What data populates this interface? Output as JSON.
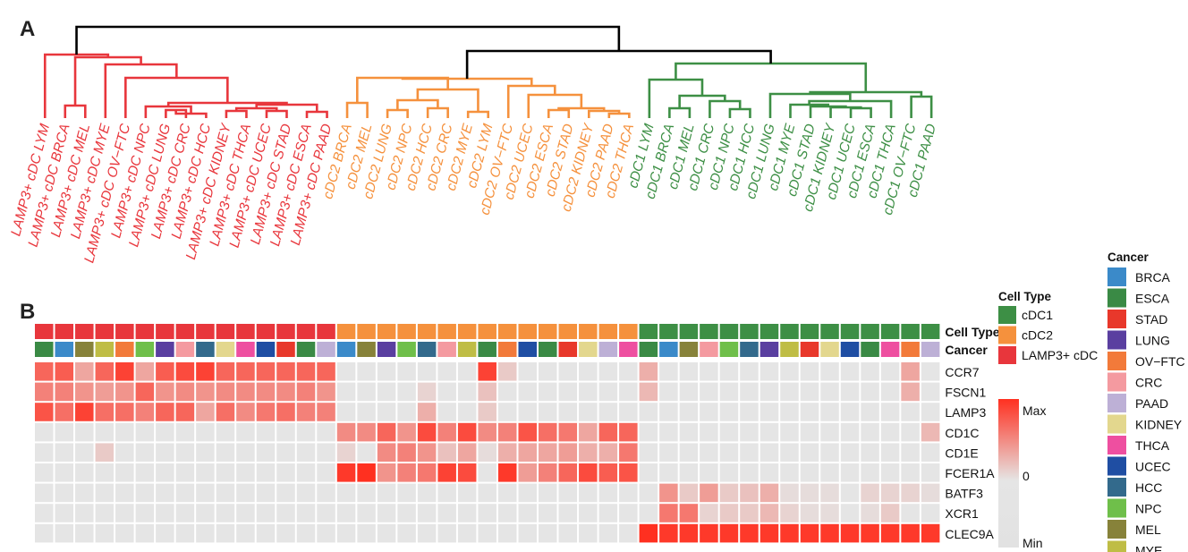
{
  "panels": {
    "a": "A",
    "b": "B"
  },
  "colors": {
    "cell_types": {
      "LAMP3+ cDC": "#e8363c",
      "cDC2": "#f5913d",
      "cDC1": "#3d8f45"
    },
    "cancers": {
      "BRCA": "#3b8ac9",
      "ESCA": "#3a8a45",
      "STAD": "#e8382b",
      "LUNG": "#5a3fa0",
      "OV-FTC": "#f27a3a",
      "CRC": "#f49aa0",
      "PAAD": "#bdb0d6",
      "KIDNEY": "#e3d78e",
      "THCA": "#ee4fa0",
      "UCEC": "#1f4ea3",
      "HCC": "#336a8c",
      "NPC": "#6fbf4a",
      "MEL": "#87823a",
      "MYE": "#bfbd45",
      "LYM": "#3a8a45"
    },
    "heat_low": "#e5e5e5",
    "heat_high": "#ff3020",
    "heat_min": "#e2e2e2"
  },
  "chart_data": {
    "type": "heatmap",
    "dendrogram_leaves": [
      "LAMP3+ cDC LYM",
      "LAMP3+ cDC BRCA",
      "LAMP3+ cDC MEL",
      "LAMP3+ cDC MYE",
      "LAMP3+ cDC OV−FTC",
      "LAMP3+ cDC NPC",
      "LAMP3+ cDC LUNG",
      "LAMP3+ cDC CRC",
      "LAMP3+ cDC HCC",
      "LAMP3+ cDC KIDNEY",
      "LAMP3+ cDC THCA",
      "LAMP3+ cDC UCEC",
      "LAMP3+ cDC STAD",
      "LAMP3+ cDC ESCA",
      "LAMP3+ cDC PAAD",
      "cDC2 BRCA",
      "cDC2 MEL",
      "cDC2 LUNG",
      "cDC2 NPC",
      "cDC2 HCC",
      "cDC2 CRC",
      "cDC2 MYE",
      "cDC2 LYM",
      "cDC2 OV−FTC",
      "cDC2 UCEC",
      "cDC2 ESCA",
      "cDC2 STAD",
      "cDC2 KIDNEY",
      "cDC2 PAAD",
      "cDC2 THCA",
      "cDC1 LYM",
      "cDC1 BRCA",
      "cDC1 MEL",
      "cDC1 CRC",
      "cDC1 NPC",
      "cDC1 HCC",
      "cDC1 LUNG",
      "cDC1 MYE",
      "cDC1 STAD",
      "cDC1 KIDNEY",
      "cDC1 UCEC",
      "cDC1 ESCA",
      "cDC1 THCA",
      "cDC1 OV−FTC",
      "cDC1 PAAD"
    ],
    "cell_type_annotation": [
      "LAMP3+ cDC",
      "LAMP3+ cDC",
      "LAMP3+ cDC",
      "LAMP3+ cDC",
      "LAMP3+ cDC",
      "LAMP3+ cDC",
      "LAMP3+ cDC",
      "LAMP3+ cDC",
      "LAMP3+ cDC",
      "LAMP3+ cDC",
      "LAMP3+ cDC",
      "LAMP3+ cDC",
      "LAMP3+ cDC",
      "LAMP3+ cDC",
      "LAMP3+ cDC",
      "cDC2",
      "cDC2",
      "cDC2",
      "cDC2",
      "cDC2",
      "cDC2",
      "cDC2",
      "cDC2",
      "cDC2",
      "cDC2",
      "cDC2",
      "cDC2",
      "cDC2",
      "cDC2",
      "cDC2",
      "cDC1",
      "cDC1",
      "cDC1",
      "cDC1",
      "cDC1",
      "cDC1",
      "cDC1",
      "cDC1",
      "cDC1",
      "cDC1",
      "cDC1",
      "cDC1",
      "cDC1",
      "cDC1",
      "cDC1"
    ],
    "cancer_annotation": [
      "LYM",
      "BRCA",
      "MEL",
      "MYE",
      "OV-FTC",
      "NPC",
      "LUNG",
      "CRC",
      "HCC",
      "KIDNEY",
      "THCA",
      "UCEC",
      "STAD",
      "ESCA",
      "PAAD",
      "BRCA",
      "MEL",
      "LUNG",
      "NPC",
      "HCC",
      "CRC",
      "MYE",
      "LYM",
      "OV-FTC",
      "UCEC",
      "ESCA",
      "STAD",
      "KIDNEY",
      "PAAD",
      "THCA",
      "LYM",
      "BRCA",
      "MEL",
      "CRC",
      "NPC",
      "HCC",
      "LUNG",
      "MYE",
      "STAD",
      "KIDNEY",
      "UCEC",
      "ESCA",
      "THCA",
      "OV-FTC",
      "PAAD"
    ],
    "annotation_row_labels": [
      "Cell Type",
      "Cancer"
    ],
    "genes": [
      "CCR7",
      "FSCN1",
      "LAMP3",
      "CD1C",
      "CD1E",
      "FCER1A",
      "BATF3",
      "XCR1",
      "CLEC9A"
    ],
    "values": [
      [
        0.7,
        0.75,
        0.35,
        0.7,
        0.9,
        0.35,
        0.75,
        0.85,
        0.9,
        0.7,
        0.7,
        0.7,
        0.7,
        0.7,
        0.7,
        0,
        0,
        0,
        0,
        0,
        0,
        0,
        0.9,
        0.15,
        0,
        0,
        0,
        0,
        0,
        0,
        0.3,
        0,
        0,
        0,
        0,
        0,
        0,
        0,
        0,
        0,
        0,
        0,
        0,
        0.35,
        0
      ],
      [
        0.55,
        0.55,
        0.45,
        0.4,
        0.45,
        0.7,
        0.45,
        0.5,
        0.45,
        0.5,
        0.5,
        0.5,
        0.5,
        0.55,
        0.45,
        0,
        0,
        0,
        0,
        0.1,
        0,
        0,
        0.2,
        0,
        0,
        0,
        0,
        0,
        0,
        0,
        0.25,
        0,
        0,
        0,
        0,
        0,
        0,
        0,
        0,
        0,
        0,
        0,
        0,
        0.3,
        0
      ],
      [
        0.8,
        0.65,
        0.9,
        0.65,
        0.65,
        0.55,
        0.7,
        0.7,
        0.35,
        0.65,
        0.5,
        0.6,
        0.65,
        0.55,
        0.55,
        0,
        0,
        0,
        0,
        0.3,
        0,
        0,
        0.15,
        0,
        0,
        0,
        0,
        0,
        0,
        0,
        0,
        0,
        0,
        0,
        0,
        0,
        0,
        0,
        0,
        0,
        0,
        0,
        0,
        0,
        0
      ],
      [
        0,
        0,
        0,
        0,
        0,
        0,
        0,
        0,
        0,
        0,
        0,
        0,
        0,
        0,
        0,
        0.5,
        0.5,
        0.7,
        0.45,
        0.85,
        0.55,
        0.85,
        0.5,
        0.55,
        0.8,
        0.65,
        0.6,
        0.35,
        0.7,
        0.7,
        0,
        0,
        0,
        0,
        0,
        0,
        0,
        0,
        0,
        0,
        0,
        0,
        0,
        0,
        0.25
      ],
      [
        0,
        0,
        0,
        0.15,
        0,
        0,
        0,
        0,
        0,
        0,
        0,
        0,
        0,
        0,
        0,
        0.1,
        0,
        0.5,
        0.55,
        0.45,
        0.2,
        0.35,
        0.05,
        0.3,
        0.35,
        0.35,
        0.4,
        0.3,
        0.3,
        0.6,
        0,
        0,
        0,
        0,
        0,
        0,
        0,
        0,
        0,
        0,
        0,
        0,
        0,
        0,
        0
      ],
      [
        0,
        0,
        0,
        0,
        0,
        0,
        0,
        0,
        0,
        0,
        0,
        0,
        0,
        0,
        0,
        0.95,
        1.0,
        0.45,
        0.55,
        0.6,
        0.9,
        0.85,
        0,
        0.95,
        0.4,
        0.55,
        0.7,
        0.85,
        0.75,
        0.8,
        0,
        0,
        0,
        0,
        0,
        0,
        0,
        0,
        0,
        0,
        0,
        0,
        0,
        0,
        0
      ],
      [
        0,
        0,
        0,
        0,
        0,
        0,
        0,
        0,
        0,
        0,
        0,
        0,
        0,
        0,
        0,
        0,
        0,
        0,
        0,
        0,
        0,
        0,
        0,
        0,
        0,
        0,
        0,
        0,
        0,
        0,
        0,
        0.45,
        0.15,
        0.4,
        0.15,
        0.2,
        0.3,
        0.05,
        0.05,
        0.05,
        0,
        0.1,
        0.1,
        0.1,
        0.05
      ],
      [
        0,
        0,
        0,
        0,
        0,
        0,
        0,
        0,
        0,
        0,
        0,
        0,
        0,
        0,
        0,
        0,
        0,
        0,
        0,
        0,
        0,
        0,
        0,
        0,
        0,
        0,
        0,
        0,
        0,
        0,
        0,
        0.6,
        0.6,
        0.1,
        0.15,
        0.15,
        0.25,
        0.1,
        0.05,
        0.05,
        0,
        0.05,
        0.15,
        0,
        0
      ],
      [
        0,
        0,
        0,
        0,
        0,
        0,
        0,
        0,
        0,
        0,
        0,
        0,
        0,
        0,
        0,
        0,
        0,
        0,
        0,
        0,
        0,
        0,
        0,
        0,
        0,
        0,
        0,
        0,
        0,
        0,
        1.0,
        0.95,
        0.95,
        0.95,
        0.95,
        0.95,
        0.95,
        0.95,
        0.95,
        0.95,
        0.95,
        0.95,
        0.95,
        0.95,
        0.95
      ]
    ],
    "value_range": [
      0,
      1
    ],
    "legends": {
      "cell_type": {
        "title": "Cell Type",
        "items": [
          "cDC1",
          "cDC2",
          "LAMP3+ cDC"
        ]
      },
      "cancer": {
        "title": "Cancer",
        "items": [
          "BRCA",
          "ESCA",
          "STAD",
          "LUNG",
          "OV−FTC",
          "CRC",
          "PAAD",
          "KIDNEY",
          "THCA",
          "UCEC",
          "HCC",
          "NPC",
          "MEL",
          "MYE"
        ]
      },
      "scale": {
        "labels": [
          "Max",
          "0",
          "Min"
        ]
      }
    }
  }
}
